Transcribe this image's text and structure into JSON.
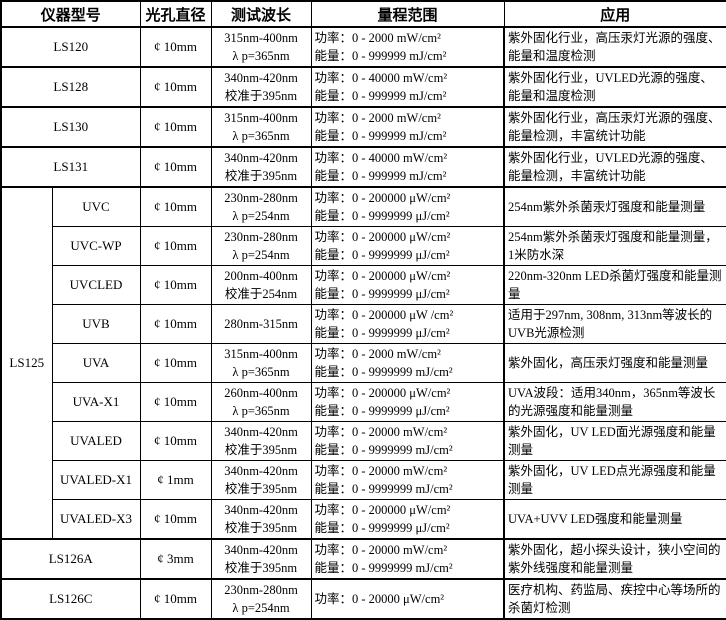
{
  "colors": {
    "border": "#000000",
    "background": "#ffffff",
    "text": "#000000"
  },
  "table": {
    "headers": [
      "仪器型号",
      "光孔直径",
      "测试波长",
      "量程范围",
      "应用"
    ],
    "group": {
      "label": "LS125",
      "start": 4,
      "size": 9
    },
    "rows": [
      {
        "model": "LS120",
        "sub": false,
        "aperture": "¢ 10mm",
        "wavelength": [
          "315nm-400nm",
          "λ p=365nm"
        ],
        "range": [
          "功率：0 - 2000 mW/cm²",
          "能量：0 - 999999 mJ/cm²"
        ],
        "application": "紫外固化行业，高压汞灯光源的强度、能量和温度检测"
      },
      {
        "model": "LS128",
        "sub": false,
        "aperture": "¢ 10mm",
        "wavelength": [
          "340nm-420nm",
          "校准于395nm"
        ],
        "range": [
          "功率：0 - 40000 mW/cm²",
          "能量：0 - 999999 mJ/cm²"
        ],
        "application": "紫外固化行业，UVLED光源的强度、能量和温度检测"
      },
      {
        "model": "LS130",
        "sub": false,
        "aperture": "¢ 10mm",
        "wavelength": [
          "315nm-400nm",
          "λ p=365nm"
        ],
        "range": [
          "功率：0 - 2000 mW/cm²",
          "能量：0 - 999999 mJ/cm²"
        ],
        "application": "紫外固化行业，高压汞灯光源的强度、能量检测，丰富统计功能"
      },
      {
        "model": "LS131",
        "sub": false,
        "aperture": "¢ 10mm",
        "wavelength": [
          "340nm-420nm",
          "校准于395nm"
        ],
        "range": [
          "功率：0 - 40000 mW/cm²",
          "能量：0 - 999999 mJ/cm²"
        ],
        "application": "紫外固化行业，UVLED光源的强度、能量检测，丰富统计功能"
      },
      {
        "model": "UVC",
        "sub": true,
        "aperture": "¢ 10mm",
        "wavelength": [
          "230nm-280nm",
          "λ p=254nm"
        ],
        "range": [
          "功率：0 - 200000 μW/cm²",
          "能量：0 - 9999999 μJ/cm²"
        ],
        "application": "254nm紫外杀菌汞灯强度和能量测量"
      },
      {
        "model": "UVC-WP",
        "sub": true,
        "aperture": "¢ 10mm",
        "wavelength": [
          "230nm-280nm",
          "λ p=254nm"
        ],
        "range": [
          "功率：0 - 200000 μW/cm²",
          "能量：0 - 9999999 μJ/cm²"
        ],
        "application": "254nm紫外杀菌汞灯强度和能量测量，1米防水深"
      },
      {
        "model": "UVCLED",
        "sub": true,
        "aperture": "¢ 10mm",
        "wavelength": [
          "200nm-400nm",
          "校准于254nm"
        ],
        "range": [
          "功率：0 - 200000 μW/cm²",
          "能量：0 - 9999999 μJ/cm²"
        ],
        "application": "220nm-320nm LED杀菌灯强度和能量测量"
      },
      {
        "model": "UVB",
        "sub": true,
        "aperture": "¢ 10mm",
        "wavelength": [
          "280nm-315nm"
        ],
        "range": [
          "功率：0 - 200000 μW /cm²",
          "能量：0 - 9999999 μJ/cm²"
        ],
        "application": "适用于297nm, 308nm, 313nm等波长的UVB光源检测"
      },
      {
        "model": "UVA",
        "sub": true,
        "aperture": "¢ 10mm",
        "wavelength": [
          "315nm-400nm",
          "λ p=365nm"
        ],
        "range": [
          "功率：0 - 2000 mW/cm²",
          "能量：0 - 9999999 mJ/cm²"
        ],
        "application": "紫外固化，高压汞灯强度和能量测量"
      },
      {
        "model": "UVA-X1",
        "sub": true,
        "aperture": "¢ 10mm",
        "wavelength": [
          "260nm-400nm",
          "λ p=365nm"
        ],
        "range": [
          "功率：0 - 200000 μW/cm²",
          "能量：0 - 9999999 μJ/cm²"
        ],
        "application": "UVA波段：适用340nm，365nm等波长的光源强度和能量测量"
      },
      {
        "model": "UVALED",
        "sub": true,
        "aperture": "¢ 10mm",
        "wavelength": [
          "340nm-420nm",
          "校准于395nm"
        ],
        "range": [
          "功率：0 - 20000 mW/cm²",
          "能量：0 - 9999999 mJ/cm²"
        ],
        "application": "紫外固化，UV LED面光源强度和能量测量"
      },
      {
        "model": "UVALED-X1",
        "sub": true,
        "aperture": "¢ 1mm",
        "wavelength": [
          "340nm-420nm",
          "校准于395nm"
        ],
        "range": [
          "功率：0 - 20000 mW/cm²",
          "能量：0 - 9999999 mJ/cm²"
        ],
        "application": "紫外固化，UV LED点光源强度和能量测量"
      },
      {
        "model": "UVALED-X3",
        "sub": true,
        "aperture": "¢ 10mm",
        "wavelength": [
          "340nm-420nm",
          "校准于395nm"
        ],
        "range": [
          "功率：0 - 200000 μW/cm²",
          "能量：0 - 9999999 μJ/cm²"
        ],
        "application": "UVA+UVV LED强度和能量测量"
      },
      {
        "model": "LS126A",
        "sub": false,
        "aperture": "¢ 3mm",
        "wavelength": [
          "340nm-420nm",
          "校准于395nm"
        ],
        "range": [
          "功率：0 - 20000 mW/cm²",
          "能量：0 - 9999999 mJ/cm²"
        ],
        "application": "紫外固化，超小探头设计，狭小空间的紫外线强度和能量测量"
      },
      {
        "model": "LS126C",
        "sub": false,
        "aperture": "¢ 10mm",
        "wavelength": [
          "230nm-280nm",
          "λ p=254nm"
        ],
        "range": [
          "功率：0 - 20000 μW/cm²"
        ],
        "application": "医疗机构、药监局、疾控中心等场所的杀菌灯检测"
      }
    ]
  }
}
